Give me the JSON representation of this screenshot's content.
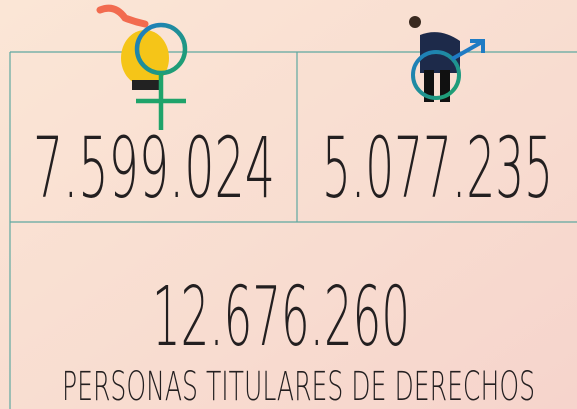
{
  "female": {
    "count": "7.599.024"
  },
  "male": {
    "count": "5.077.235"
  },
  "total": {
    "count": "12.676.260",
    "label": "PERSONAS TITULARES DE DERECHOS"
  }
}
